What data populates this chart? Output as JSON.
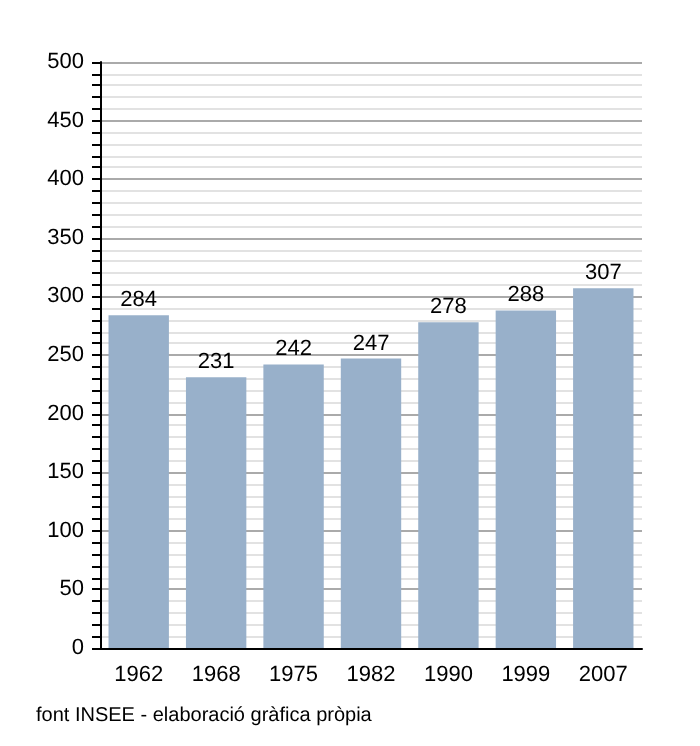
{
  "chart_data": {
    "type": "bar",
    "categories": [
      "1962",
      "1968",
      "1975",
      "1982",
      "1990",
      "1999",
      "2007"
    ],
    "values": [
      284,
      231,
      242,
      247,
      278,
      288,
      307
    ],
    "color": "#98b0ca",
    "data_labels": true,
    "ylim": [
      0,
      500
    ],
    "yticks": [
      0,
      {
        "value": 10,
        "label": null
      },
      {
        "value": 20,
        "label": null
      },
      {
        "value": 30,
        "label": null
      },
      {
        "value": 40,
        "label": null
      },
      50,
      {
        "value": 60,
        "label": null
      },
      {
        "value": 70,
        "label": null
      },
      {
        "value": 80,
        "label": null
      },
      {
        "value": 90,
        "label": null
      },
      100,
      {
        "value": 110,
        "label": null
      },
      {
        "value": 120,
        "label": null
      },
      {
        "value": 130,
        "label": null
      },
      {
        "value": 140,
        "label": null
      },
      150,
      {
        "value": 160,
        "label": null
      },
      {
        "value": 170,
        "label": null
      },
      {
        "value": 180,
        "label": null
      },
      {
        "value": 190,
        "label": null
      },
      200,
      {
        "value": 210,
        "label": null
      },
      {
        "value": 220,
        "label": null
      },
      {
        "value": 230,
        "label": null
      },
      {
        "value": 240,
        "label": null
      },
      250,
      {
        "value": 260,
        "label": null
      },
      {
        "value": 270,
        "label": null
      },
      {
        "value": 280,
        "label": null
      },
      {
        "value": 290,
        "label": null
      },
      300,
      {
        "value": 310,
        "label": null
      },
      {
        "value": 320,
        "label": null
      },
      {
        "value": 330,
        "label": null
      },
      {
        "value": 340,
        "label": null
      },
      350,
      {
        "value": 360,
        "label": null
      },
      {
        "value": 370,
        "label": null
      },
      {
        "value": 380,
        "label": null
      },
      {
        "value": 390,
        "label": null
      },
      400,
      {
        "value": 410,
        "label": null
      },
      {
        "value": 420,
        "label": null
      },
      {
        "value": 430,
        "label": null
      },
      {
        "value": 440,
        "label": null
      },
      450,
      {
        "value": 460,
        "label": null
      },
      {
        "value": 470,
        "label": null
      },
      {
        "value": 480,
        "label": null
      },
      {
        "value": 490,
        "label": null
      },
      500
    ],
    "grid": "y",
    "annotations": [
      "font INSEE - elaboració gràfica pròpia"
    ]
  }
}
